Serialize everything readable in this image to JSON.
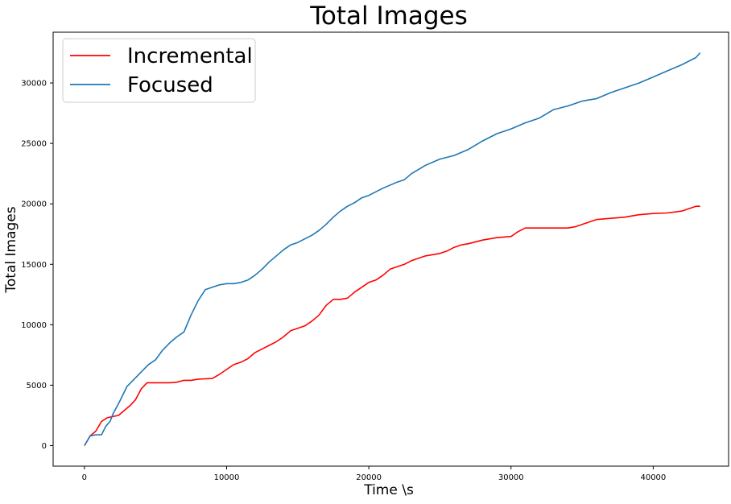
{
  "chart_data": {
    "type": "line",
    "title": "Total Images",
    "xlabel": "Time \\s",
    "ylabel": "Total Images",
    "xlim": [
      -2200,
      45300
    ],
    "ylim": [
      -1700,
      34200
    ],
    "xticks": [
      0,
      10000,
      20000,
      30000,
      40000
    ],
    "yticks": [
      0,
      5000,
      10000,
      15000,
      20000,
      25000,
      30000
    ],
    "grid": false,
    "legend_position": "top-left",
    "series": [
      {
        "name": "Incremental",
        "color": "#ff0000",
        "x": [
          0,
          400,
          800,
          1200,
          1600,
          2000,
          2400,
          2800,
          3200,
          3600,
          4000,
          4400,
          5000,
          6000,
          6500,
          7000,
          7500,
          8000,
          9000,
          9500,
          10000,
          10500,
          11000,
          11500,
          12000,
          12500,
          13000,
          13500,
          14000,
          14500,
          15000,
          15500,
          16000,
          16500,
          17000,
          17500,
          18000,
          18500,
          19000,
          19500,
          20000,
          20500,
          21000,
          21500,
          22000,
          22500,
          23000,
          23500,
          24000,
          25000,
          25500,
          26000,
          26500,
          27000,
          28000,
          29000,
          30000,
          30500,
          31000,
          32000,
          33000,
          34000,
          34500,
          35000,
          35500,
          36000,
          37000,
          38000,
          39000,
          40000,
          41000,
          42000,
          42500,
          43000,
          43300
        ],
        "y": [
          0,
          800,
          1200,
          2000,
          2300,
          2400,
          2500,
          2900,
          3300,
          3800,
          4700,
          5200,
          5200,
          5200,
          5250,
          5400,
          5400,
          5500,
          5550,
          5900,
          6300,
          6700,
          6900,
          7200,
          7700,
          8000,
          8300,
          8600,
          9000,
          9500,
          9700,
          9900,
          10300,
          10800,
          11600,
          12100,
          12100,
          12200,
          12700,
          13100,
          13500,
          13700,
          14100,
          14600,
          14800,
          15000,
          15300,
          15500,
          15700,
          15900,
          16100,
          16400,
          16600,
          16700,
          17000,
          17200,
          17300,
          17700,
          18000,
          18000,
          18000,
          18000,
          18100,
          18300,
          18500,
          18700,
          18800,
          18900,
          19100,
          19200,
          19250,
          19400,
          19600,
          19800,
          19800
        ]
      },
      {
        "name": "Focused",
        "color": "#1f77b4",
        "x": [
          0,
          400,
          800,
          1200,
          1500,
          1800,
          2000,
          2500,
          3000,
          3500,
          4000,
          4500,
          5000,
          5500,
          6000,
          6500,
          7000,
          7500,
          8000,
          8500,
          9000,
          9500,
          10000,
          10500,
          11000,
          11500,
          12000,
          12500,
          13000,
          13500,
          14000,
          14500,
          15000,
          15500,
          16000,
          16500,
          17000,
          17500,
          18000,
          18500,
          19000,
          19500,
          20000,
          21000,
          22000,
          22500,
          23000,
          24000,
          25000,
          26000,
          27000,
          28000,
          29000,
          30000,
          31000,
          32000,
          33000,
          34000,
          35000,
          36000,
          37000,
          38000,
          39000,
          40000,
          41000,
          42000,
          43000,
          43300
        ],
        "y": [
          0,
          800,
          900,
          900,
          1600,
          2000,
          2600,
          3700,
          4900,
          5500,
          6100,
          6700,
          7100,
          7900,
          8500,
          9000,
          9400,
          10800,
          12000,
          12900,
          13100,
          13300,
          13400,
          13400,
          13500,
          13700,
          14100,
          14600,
          15200,
          15700,
          16200,
          16600,
          16800,
          17100,
          17400,
          17800,
          18300,
          18900,
          19400,
          19800,
          20100,
          20500,
          20700,
          21300,
          21800,
          22000,
          22500,
          23200,
          23700,
          24000,
          24500,
          25200,
          25800,
          26200,
          26700,
          27100,
          27800,
          28100,
          28500,
          28700,
          29200,
          29600,
          30000,
          30500,
          31000,
          31500,
          32100,
          32500
        ]
      }
    ]
  }
}
